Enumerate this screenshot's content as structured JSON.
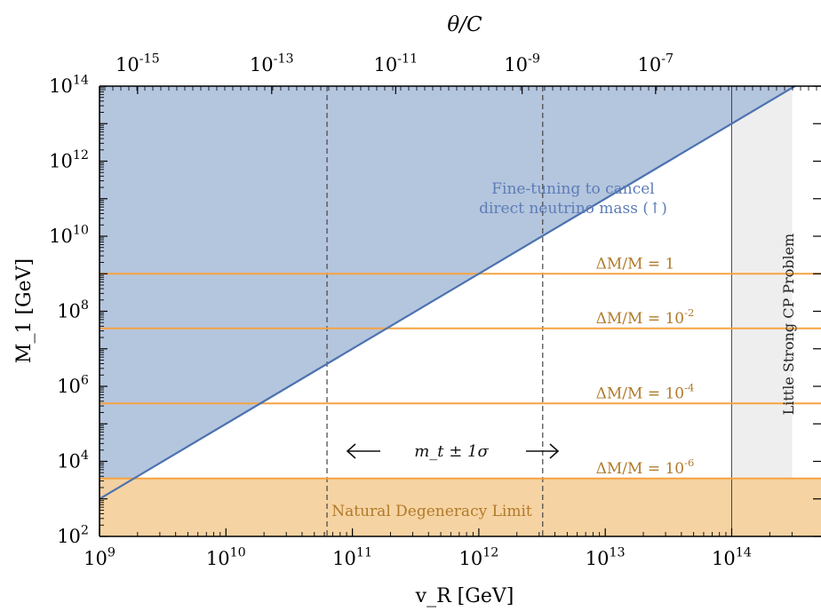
{
  "chart_data": {
    "type": "area",
    "title": "",
    "xlabel": "v_R [GeV]",
    "ylabel": "M_1 [GeV]",
    "top_xlabel": "θ/C",
    "x_scale": "log",
    "y_scale": "log",
    "xlim": [
      1000000000.0,
      300000000000000.0
    ],
    "ylim": [
      100.0,
      100000000000000.0
    ],
    "x_ticks": [
      {
        "value": 1000000000.0,
        "label": "10^9"
      },
      {
        "value": 10000000000.0,
        "label": "10^10"
      },
      {
        "value": 100000000000.0,
        "label": "10^11"
      },
      {
        "value": 1000000000000.0,
        "label": "10^12"
      },
      {
        "value": 10000000000000.0,
        "label": "10^13"
      },
      {
        "value": 100000000000000.0,
        "label": "10^14"
      }
    ],
    "y_ticks": [
      {
        "value": 100.0,
        "label": "10^2"
      },
      {
        "value": 10000.0,
        "label": "10^4"
      },
      {
        "value": 1000000.0,
        "label": "10^6"
      },
      {
        "value": 100000000.0,
        "label": "10^8"
      },
      {
        "value": 10000000000.0,
        "label": "10^10"
      },
      {
        "value": 1000000000000.0,
        "label": "10^12"
      },
      {
        "value": 100000000000000.0,
        "label": "10^14"
      }
    ],
    "top_ticks": [
      {
        "v_R": 2000000000.0,
        "label": "10^-15"
      },
      {
        "v_R": 23000000000.0,
        "label": "10^-13"
      },
      {
        "v_R": 220000000000.0,
        "label": "10^-11"
      },
      {
        "v_R": 2200000000000.0,
        "label": "10^-9"
      },
      {
        "v_R": 25000000000000.0,
        "label": "10^-7"
      }
    ],
    "regions": [
      {
        "name": "Fine-tuning to cancel direct neutrino mass (↑)",
        "text1": "Fine-tuning to cancel",
        "text2": "direct neutrino mass (↑)",
        "boundary": [
          [
            1000000000.0,
            1000.0
          ],
          [
            300000000000000.0,
            90000000000000.0
          ]
        ],
        "fill": "#b4c5de",
        "edge": "#4c72b0"
      },
      {
        "name": "Natural Degeneracy Limit",
        "ymin": 100.0,
        "ymax": 3500.0,
        "fill": "#f5d19d",
        "edge": "#e6a23c"
      },
      {
        "name": "Little Strong CP Problem",
        "xmin": 100000000000000.0,
        "xmax": 300000000000000.0,
        "fill": "#eeeeee"
      }
    ],
    "hlines": [
      {
        "value": 1000000000.0,
        "label": "ΔM/M = 1"
      },
      {
        "value": 35000000.0,
        "label": "ΔM/M = 10^-2"
      },
      {
        "value": 350000.0,
        "label": "ΔM/M = 10^-4"
      },
      {
        "value": 3500.0,
        "label": "ΔM/M = 10^-6"
      }
    ],
    "vlines": [
      {
        "value": 63000000000.0,
        "style": "dashed"
      },
      {
        "value": 3200000000000.0,
        "style": "dashed"
      },
      {
        "value": 100000000000000.0,
        "style": "solid"
      }
    ],
    "annotation": "m_t ± 1σ",
    "colors": {
      "fine_tuning": "#4c72b0",
      "degeneracy": "#e6a23c",
      "hlines": "#f5a342",
      "text_orange": "#b07a2a"
    },
    "grid": false,
    "legend": "none"
  }
}
